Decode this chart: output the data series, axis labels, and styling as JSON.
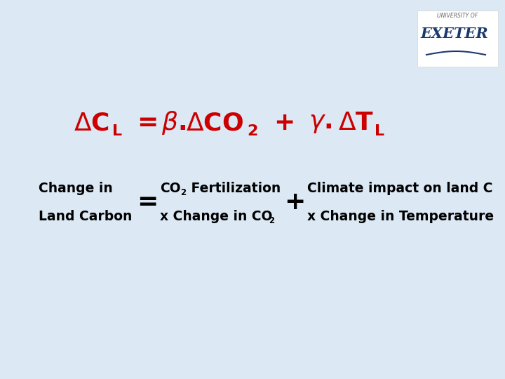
{
  "background_color": "#dce9f5",
  "logo_box_color": "#ffffff",
  "red_color": "#cc0000",
  "black_color": "#000000",
  "dark_navy": "#1a3a6e",
  "change_in": "Change in",
  "land_carbon": "Land Carbon",
  "climate_impact": "Climate impact on land C",
  "x_change_temp": "x Change in Temperature",
  "logo_text_univ": "UNIVERSITY OF",
  "logo_text_exeter": "EXETER"
}
